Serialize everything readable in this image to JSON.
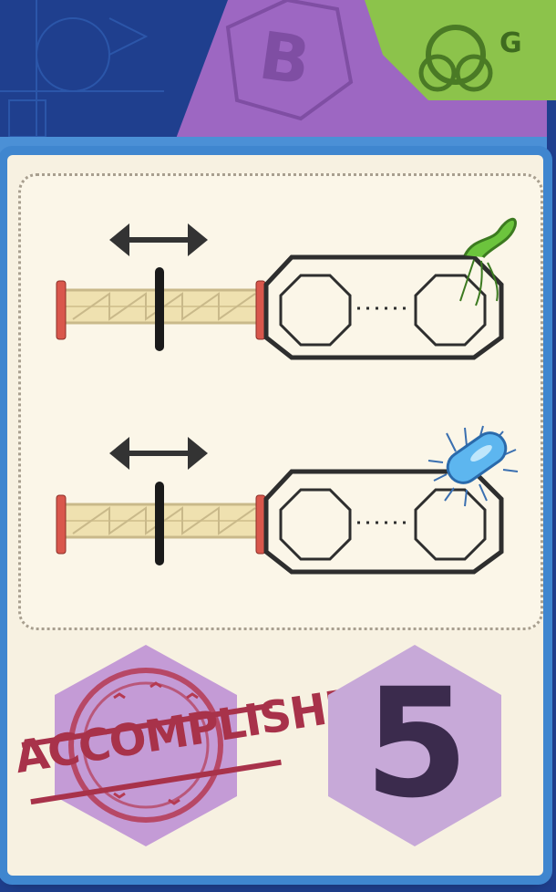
{
  "card": {
    "stamp_label": "ACCOMPLISHED",
    "points": "5"
  },
  "background_tabs": {
    "purple_tab_letter": "B",
    "green_tab_letter": "G"
  },
  "missions": [
    {
      "organism": "green-bacillus-icon"
    },
    {
      "organism": "blue-bacterium-icon"
    }
  ],
  "colors": {
    "card_border": "#3f86cf",
    "hex_purple": "#c49bd6",
    "stamp_red": "#a8324a",
    "points_text": "#3b2b4d"
  }
}
